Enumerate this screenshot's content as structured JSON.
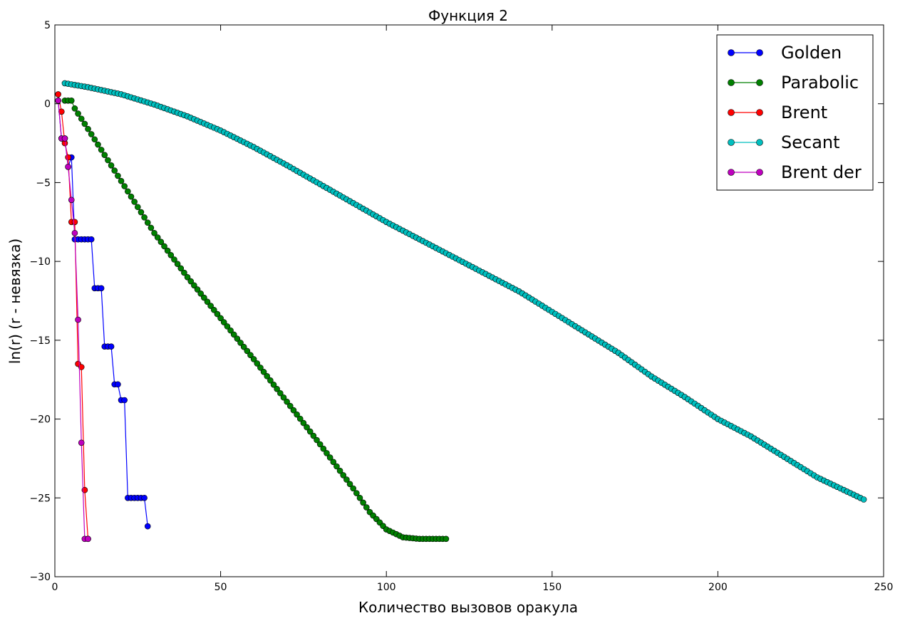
{
  "chart_data": {
    "type": "line",
    "title": "Функция 2",
    "xlabel": "Количество вызовов оракула",
    "ylabel": "ln(r) (r - невязка)",
    "xlim": [
      0,
      250
    ],
    "ylim": [
      -30,
      5
    ],
    "xticks": [
      0,
      50,
      100,
      150,
      200,
      250
    ],
    "yticks": [
      -30,
      -25,
      -20,
      -15,
      -10,
      -5,
      0,
      5
    ],
    "grid": false,
    "legend": "top-right",
    "markers": true,
    "series": [
      {
        "name": "Golden",
        "color": "#0000ff",
        "points": [
          [
            1,
            0.2
          ],
          [
            2,
            -2.2
          ],
          [
            3,
            -2.2
          ],
          [
            4,
            -4.0
          ],
          [
            5,
            -3.4
          ],
          [
            6,
            -8.6
          ],
          [
            7,
            -8.6
          ],
          [
            8,
            -8.6
          ],
          [
            9,
            -8.6
          ],
          [
            10,
            -8.6
          ],
          [
            11,
            -8.6
          ],
          [
            12,
            -11.7
          ],
          [
            13,
            -11.7
          ],
          [
            14,
            -11.7
          ],
          [
            15,
            -15.4
          ],
          [
            16,
            -15.4
          ],
          [
            17,
            -15.4
          ],
          [
            18,
            -17.8
          ],
          [
            19,
            -17.8
          ],
          [
            20,
            -18.8
          ],
          [
            21,
            -18.8
          ],
          [
            22,
            -25.0
          ],
          [
            23,
            -25.0
          ],
          [
            24,
            -25.0
          ],
          [
            25,
            -25.0
          ],
          [
            26,
            -25.0
          ],
          [
            27,
            -25.0
          ],
          [
            28,
            -26.8
          ]
        ]
      },
      {
        "name": "Parabolic",
        "color": "#008000",
        "x_start": 3,
        "x_end": 118,
        "points_sparse": [
          [
            3,
            0.2
          ],
          [
            4,
            0.2
          ],
          [
            5,
            0.2
          ],
          [
            6,
            -0.3
          ],
          [
            10,
            -1.6
          ],
          [
            20,
            -4.9
          ],
          [
            30,
            -8.2
          ],
          [
            40,
            -11.0
          ],
          [
            50,
            -13.6
          ],
          [
            60,
            -16.2
          ],
          [
            70,
            -18.9
          ],
          [
            80,
            -21.6
          ],
          [
            90,
            -24.4
          ],
          [
            95,
            -25.9
          ],
          [
            100,
            -27.0
          ],
          [
            105,
            -27.5
          ],
          [
            110,
            -27.6
          ],
          [
            118,
            -27.6
          ]
        ]
      },
      {
        "name": "Brent",
        "color": "#ff0000",
        "points": [
          [
            1,
            0.6
          ],
          [
            2,
            -0.5
          ],
          [
            3,
            -2.5
          ],
          [
            4,
            -3.4
          ],
          [
            5,
            -7.5
          ],
          [
            6,
            -7.5
          ],
          [
            7,
            -16.5
          ],
          [
            8,
            -16.7
          ],
          [
            9,
            -24.5
          ],
          [
            10,
            -27.6
          ]
        ]
      },
      {
        "name": "Secant",
        "color": "#00bfbf",
        "x_start": 3,
        "x_end": 244,
        "points_sparse": [
          [
            3,
            1.3
          ],
          [
            10,
            1.05
          ],
          [
            20,
            0.6
          ],
          [
            30,
            -0.05
          ],
          [
            40,
            -0.8
          ],
          [
            50,
            -1.7
          ],
          [
            60,
            -2.75
          ],
          [
            70,
            -3.9
          ],
          [
            80,
            -5.1
          ],
          [
            90,
            -6.3
          ],
          [
            100,
            -7.5
          ],
          [
            110,
            -8.6
          ],
          [
            120,
            -9.7
          ],
          [
            130,
            -10.8
          ],
          [
            140,
            -11.9
          ],
          [
            150,
            -13.2
          ],
          [
            160,
            -14.5
          ],
          [
            170,
            -15.8
          ],
          [
            180,
            -17.3
          ],
          [
            190,
            -18.6
          ],
          [
            200,
            -20.0
          ],
          [
            210,
            -21.1
          ],
          [
            220,
            -22.4
          ],
          [
            230,
            -23.7
          ],
          [
            240,
            -24.7
          ],
          [
            244,
            -25.1
          ]
        ]
      },
      {
        "name": "Brent der",
        "color": "#bf00bf",
        "points": [
          [
            1,
            0.2
          ],
          [
            2,
            -2.2
          ],
          [
            3,
            -2.2
          ],
          [
            4,
            -4.0
          ],
          [
            5,
            -6.1
          ],
          [
            6,
            -8.2
          ],
          [
            7,
            -13.7
          ],
          [
            8,
            -21.5
          ],
          [
            9,
            -27.6
          ],
          [
            10,
            -27.6
          ]
        ]
      }
    ]
  }
}
